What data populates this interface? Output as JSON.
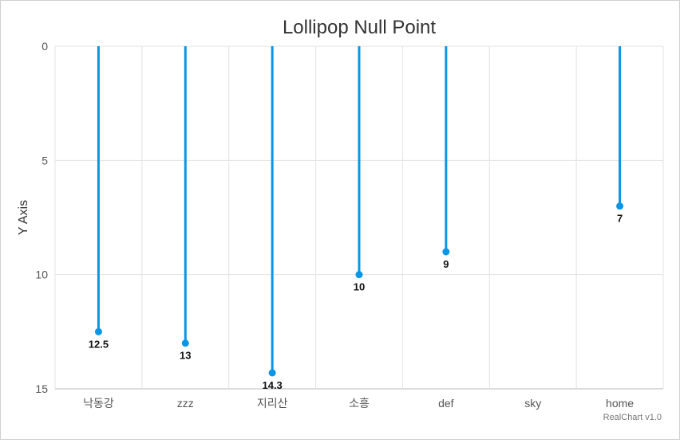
{
  "chart_data": {
    "type": "lollipop",
    "title": "Lollipop Null Point",
    "ylabel": "Y Axis",
    "xlabel": "",
    "categories": [
      "낙동강",
      "zzz",
      "지리산",
      "소흥",
      "def",
      "sky",
      "home"
    ],
    "values": [
      12.5,
      13,
      14.3,
      10,
      9,
      null,
      7
    ],
    "value_labels": [
      "12.5",
      "13",
      "14.3",
      "10",
      "9",
      "",
      "7"
    ],
    "ylim": [
      0,
      15
    ],
    "y_reversed": true,
    "yticks": [
      0,
      5,
      10,
      15
    ],
    "ytick_labels": [
      "0",
      "5",
      "10",
      "15"
    ],
    "grid": true,
    "legend": "none",
    "series_color": "#0b96e5",
    "credit": "RealChart v1.0"
  }
}
